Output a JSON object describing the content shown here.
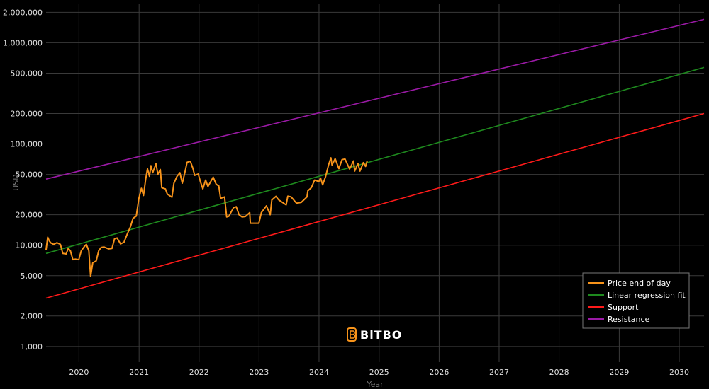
{
  "chart_data": {
    "type": "line",
    "title": "",
    "xlabel": "Year",
    "ylabel": "USD",
    "y_scale": "log",
    "ylim": [
      700,
      2400000
    ],
    "xlim": [
      "2019-06-15",
      "2030-06-01"
    ],
    "y_ticks": [
      {
        "value": 1000,
        "label": "1,000"
      },
      {
        "value": 2000,
        "label": "2,000"
      },
      {
        "value": 5000,
        "label": "5,000"
      },
      {
        "value": 10000,
        "label": "10,000"
      },
      {
        "value": 20000,
        "label": "20,000"
      },
      {
        "value": 50000,
        "label": "50,000"
      },
      {
        "value": 100000,
        "label": "100,000"
      },
      {
        "value": 200000,
        "label": "200,000"
      },
      {
        "value": 500000,
        "label": "500,000"
      },
      {
        "value": 1000000,
        "label": "1,000,000"
      },
      {
        "value": 2000000,
        "label": "2,000,000"
      }
    ],
    "x_ticks": [
      {
        "value": "2020-01-01",
        "label": "2020"
      },
      {
        "value": "2021-01-01",
        "label": "2021"
      },
      {
        "value": "2022-01-01",
        "label": "2022"
      },
      {
        "value": "2023-01-01",
        "label": "2023"
      },
      {
        "value": "2024-01-01",
        "label": "2024"
      },
      {
        "value": "2025-01-01",
        "label": "2025"
      },
      {
        "value": "2026-01-01",
        "label": "2026"
      },
      {
        "value": "2027-01-01",
        "label": "2027"
      },
      {
        "value": "2028-01-01",
        "label": "2028"
      },
      {
        "value": "2029-01-01",
        "label": "2029"
      },
      {
        "value": "2030-01-01",
        "label": "2030"
      }
    ],
    "grid": true,
    "legend_position": "bottom-right",
    "series": [
      {
        "name": "Price end of day",
        "color": "#f7931a",
        "points": [
          [
            "2019-06-15",
            9000
          ],
          [
            "2019-06-25",
            12000
          ],
          [
            "2019-07-05",
            11000
          ],
          [
            "2019-07-15",
            10500
          ],
          [
            "2019-08-01",
            10200
          ],
          [
            "2019-08-20",
            10600
          ],
          [
            "2019-09-10",
            10200
          ],
          [
            "2019-09-25",
            8300
          ],
          [
            "2019-10-15",
            8200
          ],
          [
            "2019-10-28",
            9300
          ],
          [
            "2019-11-10",
            8800
          ],
          [
            "2019-11-25",
            7200
          ],
          [
            "2019-12-10",
            7300
          ],
          [
            "2019-12-31",
            7200
          ],
          [
            "2020-01-15",
            8800
          ],
          [
            "2020-02-05",
            9800
          ],
          [
            "2020-02-15",
            10200
          ],
          [
            "2020-03-01",
            8800
          ],
          [
            "2020-03-12",
            4900
          ],
          [
            "2020-03-25",
            6700
          ],
          [
            "2020-04-15",
            7000
          ],
          [
            "2020-04-30",
            8800
          ],
          [
            "2020-05-15",
            9500
          ],
          [
            "2020-06-01",
            9600
          ],
          [
            "2020-06-30",
            9200
          ],
          [
            "2020-07-20",
            9300
          ],
          [
            "2020-08-05",
            11600
          ],
          [
            "2020-08-20",
            11800
          ],
          [
            "2020-09-10",
            10300
          ],
          [
            "2020-10-01",
            10700
          ],
          [
            "2020-10-21",
            12900
          ],
          [
            "2020-11-10",
            15300
          ],
          [
            "2020-11-25",
            18400
          ],
          [
            "2020-12-15",
            19400
          ],
          [
            "2020-12-31",
            29000
          ],
          [
            "2021-01-15",
            36500
          ],
          [
            "2021-01-28",
            31000
          ],
          [
            "2021-02-10",
            45000
          ],
          [
            "2021-02-21",
            57000
          ],
          [
            "2021-03-05",
            48000
          ],
          [
            "2021-03-14",
            61000
          ],
          [
            "2021-03-25",
            52000
          ],
          [
            "2021-04-14",
            64000
          ],
          [
            "2021-04-25",
            50000
          ],
          [
            "2021-05-10",
            56000
          ],
          [
            "2021-05-19",
            37000
          ],
          [
            "2021-06-10",
            36000
          ],
          [
            "2021-06-22",
            32000
          ],
          [
            "2021-07-20",
            29800
          ],
          [
            "2021-08-01",
            41000
          ],
          [
            "2021-08-20",
            48000
          ],
          [
            "2021-09-06",
            52000
          ],
          [
            "2021-09-21",
            41000
          ],
          [
            "2021-10-05",
            51000
          ],
          [
            "2021-10-20",
            66000
          ],
          [
            "2021-11-09",
            67500
          ],
          [
            "2021-11-25",
            57000
          ],
          [
            "2021-12-05",
            49000
          ],
          [
            "2021-12-27",
            50500
          ],
          [
            "2022-01-10",
            42000
          ],
          [
            "2022-01-24",
            36000
          ],
          [
            "2022-02-10",
            44000
          ],
          [
            "2022-02-24",
            38000
          ],
          [
            "2022-03-28",
            47000
          ],
          [
            "2022-04-15",
            40000
          ],
          [
            "2022-05-01",
            38500
          ],
          [
            "2022-05-12",
            29000
          ],
          [
            "2022-06-05",
            30000
          ],
          [
            "2022-06-18",
            19000
          ],
          [
            "2022-07-01",
            19300
          ],
          [
            "2022-07-30",
            23500
          ],
          [
            "2022-08-15",
            24000
          ],
          [
            "2022-09-01",
            20000
          ],
          [
            "2022-09-20",
            19000
          ],
          [
            "2022-10-10",
            19200
          ],
          [
            "2022-11-05",
            21000
          ],
          [
            "2022-11-09",
            16500
          ],
          [
            "2022-11-25",
            16500
          ],
          [
            "2022-12-31",
            16500
          ],
          [
            "2023-01-15",
            21000
          ],
          [
            "2023-02-15",
            24500
          ],
          [
            "2023-03-10",
            20000
          ],
          [
            "2023-03-20",
            28000
          ],
          [
            "2023-04-14",
            30400
          ],
          [
            "2023-05-01",
            28000
          ],
          [
            "2023-06-15",
            25000
          ],
          [
            "2023-06-25",
            30500
          ],
          [
            "2023-07-15",
            30000
          ],
          [
            "2023-08-17",
            26000
          ],
          [
            "2023-09-15",
            26500
          ],
          [
            "2023-10-20",
            30000
          ],
          [
            "2023-10-25",
            34500
          ],
          [
            "2023-11-15",
            37000
          ],
          [
            "2023-12-05",
            44000
          ],
          [
            "2023-12-31",
            42500
          ],
          [
            "2024-01-10",
            46000
          ],
          [
            "2024-01-23",
            39500
          ],
          [
            "2024-02-10",
            47500
          ],
          [
            "2024-02-28",
            62000
          ],
          [
            "2024-03-13",
            73000
          ],
          [
            "2024-03-20",
            62000
          ],
          [
            "2024-04-08",
            71500
          ],
          [
            "2024-05-01",
            57000
          ],
          [
            "2024-05-20",
            70000
          ],
          [
            "2024-06-07",
            71000
          ],
          [
            "2024-07-05",
            56500
          ],
          [
            "2024-07-29",
            68000
          ],
          [
            "2024-08-05",
            54000
          ],
          [
            "2024-08-25",
            64000
          ],
          [
            "2024-09-06",
            54000
          ],
          [
            "2024-09-27",
            65500
          ],
          [
            "2024-10-10",
            60000
          ],
          [
            "2024-10-20",
            68000
          ]
        ]
      },
      {
        "name": "Linear regression fit",
        "color": "#1e8a1e",
        "points": [
          [
            "2019-06-15",
            8300
          ],
          [
            "2030-06-01",
            570000
          ]
        ]
      },
      {
        "name": "Support",
        "color": "#ff1a1a",
        "points": [
          [
            "2019-06-15",
            3000
          ],
          [
            "2030-06-01",
            200000
          ]
        ]
      },
      {
        "name": "Resistance",
        "color": "#9b1aa6",
        "points": [
          [
            "2019-06-15",
            45000
          ],
          [
            "2030-06-01",
            1700000
          ]
        ]
      }
    ]
  },
  "logo": {
    "text": "BiTBO"
  }
}
